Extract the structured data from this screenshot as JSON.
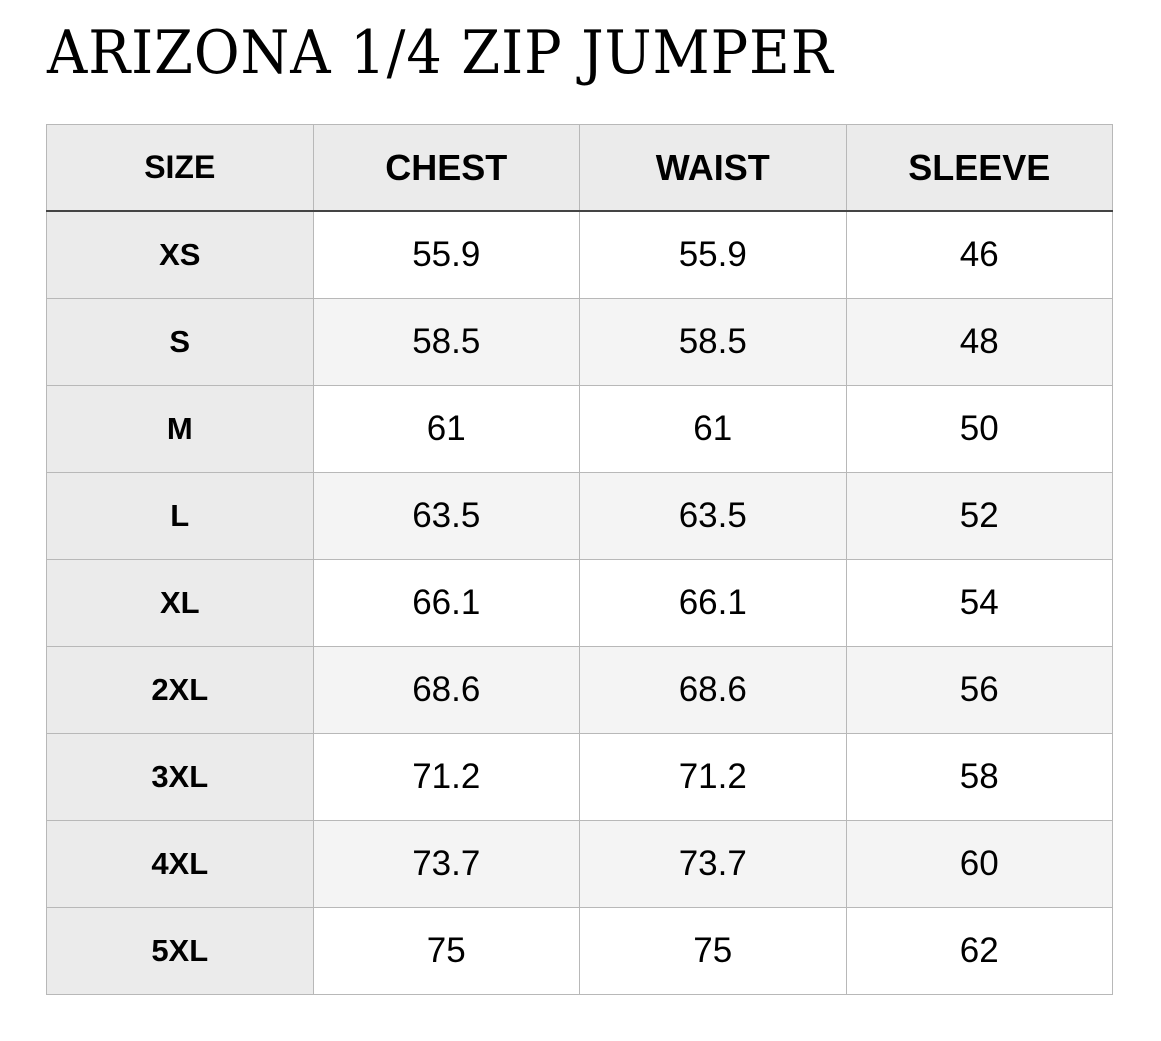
{
  "title": "ARIZONA 1/4 ZIP JUMPER",
  "table": {
    "headers": [
      "SIZE",
      "CHEST",
      "WAIST",
      "SLEEVE"
    ],
    "rows": [
      [
        "XS",
        "55.9",
        "55.9",
        "46"
      ],
      [
        "S",
        "58.5",
        "58.5",
        "48"
      ],
      [
        "M",
        "61",
        "61",
        "50"
      ],
      [
        "L",
        "63.5",
        "63.5",
        "52"
      ],
      [
        "XL",
        "66.1",
        "66.1",
        "54"
      ],
      [
        "2XL",
        "68.6",
        "68.6",
        "56"
      ],
      [
        "3XL",
        "71.2",
        "71.2",
        "58"
      ],
      [
        "4XL",
        "73.7",
        "73.7",
        "60"
      ],
      [
        "5XL",
        "75",
        "75",
        "62"
      ]
    ]
  }
}
